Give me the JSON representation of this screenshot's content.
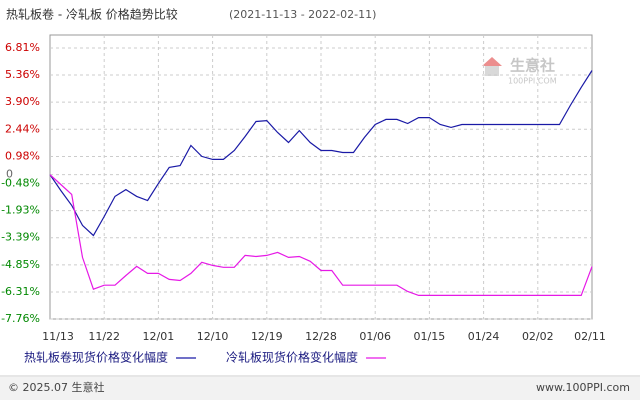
{
  "chart_data": {
    "type": "line",
    "title": "热轧板卷 - 冷轧板 价格趋势比较",
    "subtitle": "(2021-11-13 - 2022-02-11)",
    "categories": [
      "11/13",
      null,
      null,
      null,
      null,
      "11/22",
      null,
      null,
      null,
      null,
      "12/01",
      null,
      null,
      null,
      null,
      "12/10",
      null,
      null,
      null,
      null,
      "12/19",
      null,
      null,
      null,
      null,
      "12/28",
      null,
      null,
      null,
      null,
      "01/06",
      null,
      null,
      null,
      null,
      "01/15",
      null,
      null,
      null,
      null,
      "01/24",
      null,
      null,
      null,
      null,
      "02/02",
      null,
      null,
      null,
      null,
      "02/11"
    ],
    "series": [
      {
        "name": "热轧板卷现货价格变化幅度",
        "color": "#1a1aa6",
        "values": [
          0,
          -0.85,
          -1.65,
          -2.73,
          -3.27,
          -2.25,
          -1.17,
          -0.8,
          -1.17,
          -1.39,
          -0.47,
          0.39,
          0.49,
          1.57,
          0.98,
          0.82,
          0.82,
          1.3,
          2.05,
          2.86,
          2.91,
          2.27,
          1.73,
          2.37,
          1.73,
          1.3,
          1.3,
          1.19,
          1.19,
          2.0,
          2.7,
          2.97,
          2.97,
          2.75,
          3.07,
          3.07,
          2.7,
          2.54,
          2.7,
          2.7,
          2.7,
          2.7,
          2.7,
          2.7,
          2.7,
          2.7,
          2.7,
          2.7,
          3.72,
          4.69,
          5.6
        ]
      },
      {
        "name": "冷轧板现货价格变化幅度",
        "color": "#e619e6",
        "values": [
          0,
          -0.53,
          -1.06,
          -4.45,
          -6.16,
          -5.94,
          -5.94,
          -5.42,
          -4.93,
          -5.31,
          -5.31,
          -5.63,
          -5.69,
          -5.31,
          -4.71,
          -4.88,
          -4.98,
          -4.98,
          -4.34,
          -4.4,
          -4.34,
          -4.18,
          -4.45,
          -4.4,
          -4.66,
          -5.15,
          -5.15,
          -5.94,
          -5.94,
          -5.94,
          -5.94,
          -5.94,
          -5.94,
          -6.28,
          -6.49,
          -6.49,
          -6.49,
          -6.49,
          -6.49,
          -6.49,
          -6.49,
          -6.49,
          -6.49,
          -6.49,
          -6.49,
          -6.49,
          -6.49,
          -6.49,
          -6.49,
          -6.49,
          -4.94
        ]
      }
    ],
    "ylim": [
      -7.76,
      7.51
    ],
    "yticks": [
      {
        "value": 6.81,
        "label": "6.81%"
      },
      {
        "value": 5.36,
        "label": "5.36%"
      },
      {
        "value": 3.9,
        "label": "3.90%"
      },
      {
        "value": 2.44,
        "label": "2.44%"
      },
      {
        "value": 0.98,
        "label": "0.98%"
      },
      0,
      {
        "value": -0.48,
        "label": "-0.48%"
      },
      {
        "value": -1.93,
        "label": "-1.93%"
      },
      {
        "value": -3.39,
        "label": "-3.39%"
      },
      {
        "value": -4.85,
        "label": "-4.85%"
      },
      {
        "value": -6.31,
        "label": "-6.31%"
      },
      {
        "value": -7.76,
        "label": "-7.76%"
      }
    ],
    "grid": true,
    "positive_tick_color": "#cc0000",
    "negative_tick_color": "#008800",
    "watermark": {
      "name": "生意社",
      "site": "100PPI.COM"
    },
    "footer": {
      "left": "© 2025.07 生意社",
      "right": "www.100PPI.com"
    }
  }
}
